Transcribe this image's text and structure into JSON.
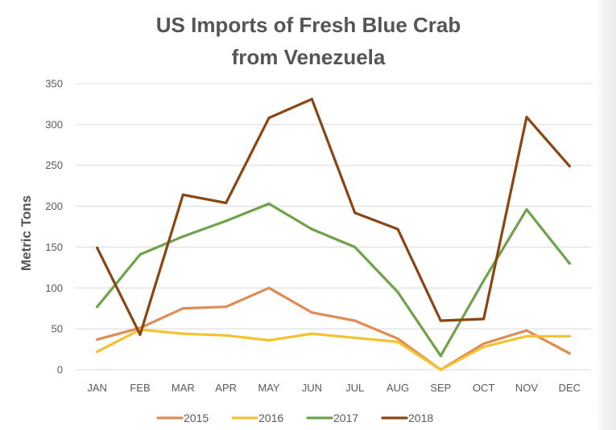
{
  "chart_data": {
    "type": "line",
    "title": [
      "US Imports of Fresh Blue Crab",
      "from Venezuela"
    ],
    "xlabel": "",
    "ylabel": "Metric Tons",
    "ylim": [
      0,
      350
    ],
    "yticks": [
      0,
      50,
      100,
      150,
      200,
      250,
      300,
      350
    ],
    "grid": true,
    "legend_position": "bottom",
    "categories": [
      "JAN",
      "FEB",
      "MAR",
      "APR",
      "MAY",
      "JUN",
      "JUL",
      "AUG",
      "SEP",
      "OCT",
      "NOV",
      "DEC"
    ],
    "series": [
      {
        "name": "2015",
        "color": "#e08c55",
        "values": [
          37,
          51,
          75,
          77,
          100,
          70,
          60,
          38,
          0,
          32,
          48,
          20
        ]
      },
      {
        "name": "2016",
        "color": "#f2c230",
        "values": [
          22,
          49,
          44,
          42,
          36,
          44,
          39,
          34,
          0,
          28,
          41,
          41
        ]
      },
      {
        "name": "2017",
        "color": "#6fa34a",
        "values": [
          77,
          141,
          163,
          182,
          203,
          172,
          150,
          95,
          17,
          109,
          196,
          130
        ]
      },
      {
        "name": "2018",
        "color": "#8b4513",
        "values": [
          149,
          43,
          214,
          204,
          308,
          331,
          192,
          172,
          60,
          62,
          309,
          249
        ]
      }
    ]
  }
}
